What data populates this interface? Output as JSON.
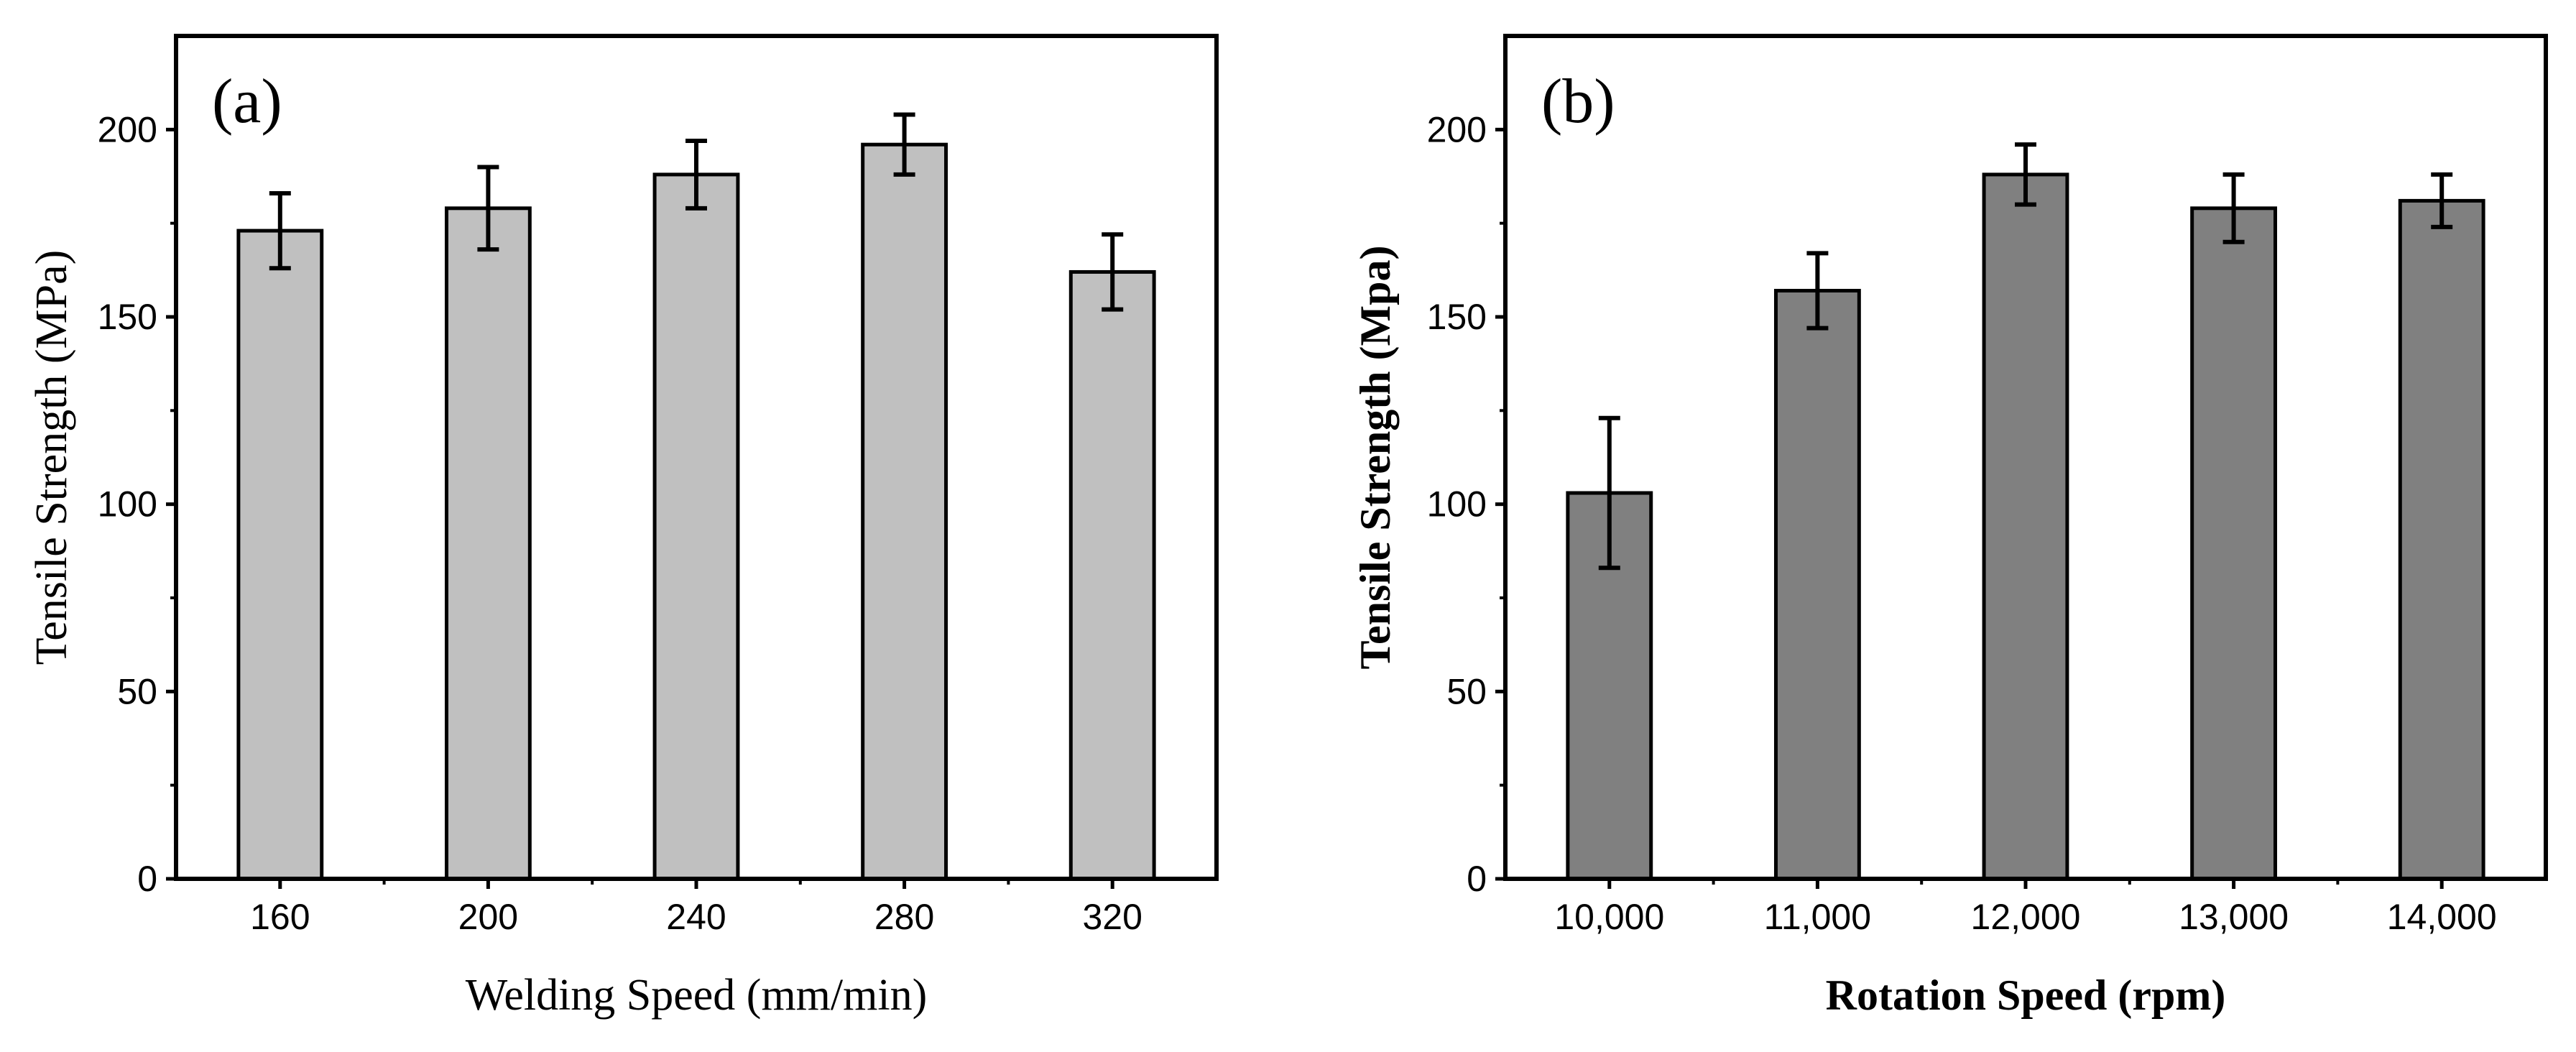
{
  "chart_data": [
    {
      "type": "bar",
      "panel_label": "(a)",
      "title": "",
      "xlabel": "Welding Speed (mm/min)",
      "ylabel": "Tensile Strength (MPa)",
      "categories": [
        "160",
        "200",
        "240",
        "280",
        "320"
      ],
      "values": [
        173,
        179,
        188,
        196,
        162
      ],
      "errors": [
        10,
        11,
        9,
        8,
        10
      ],
      "ylim": [
        0,
        225
      ],
      "yticks": [
        "0",
        "50",
        "100",
        "150",
        "200"
      ],
      "bar_color": "#c0c0c0",
      "grid": false
    },
    {
      "type": "bar",
      "panel_label": "(b)",
      "title": "",
      "xlabel": "Rotation Speed (rpm)",
      "ylabel": "Tensile Strength (Mpa)",
      "categories": [
        "10,000",
        "11,000",
        "12,000",
        "13,000",
        "14,000"
      ],
      "values": [
        103,
        157,
        188,
        179,
        181
      ],
      "errors": [
        20,
        10,
        8,
        9,
        7
      ],
      "ylim": [
        0,
        225
      ],
      "yticks": [
        "0",
        "50",
        "100",
        "150",
        "200"
      ],
      "bar_color": "#808080",
      "grid": false
    }
  ]
}
